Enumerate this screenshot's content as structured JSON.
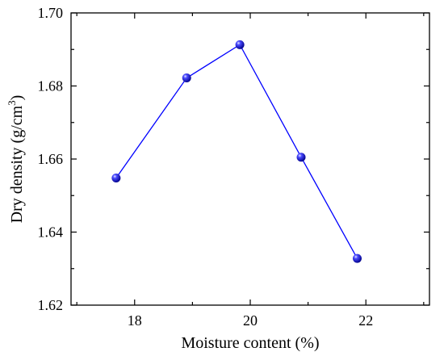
{
  "chart_data": {
    "type": "line",
    "xlabel": "Moisture content (%)",
    "ylabel": {
      "text": "Dry density (g/cm",
      "superscript": "3",
      "suffix": ")"
    },
    "xlim": [
      16.9,
      23.1
    ],
    "ylim": [
      1.62,
      1.7
    ],
    "x_ticks": [
      18,
      20,
      22
    ],
    "x_tick_labels": [
      "18",
      "20",
      "22"
    ],
    "y_ticks": [
      1.62,
      1.64,
      1.66,
      1.68,
      1.7
    ],
    "y_tick_labels": [
      "1.62",
      "1.64",
      "1.66",
      "1.68",
      "1.70"
    ],
    "x": [
      17.68,
      18.9,
      19.82,
      20.88,
      21.85
    ],
    "series": [
      {
        "values": [
          1.6548,
          1.6822,
          1.6913,
          1.6605,
          1.6328
        ],
        "color": "#0000ff",
        "marker": "sphere"
      }
    ],
    "grid": false,
    "legend": null
  }
}
